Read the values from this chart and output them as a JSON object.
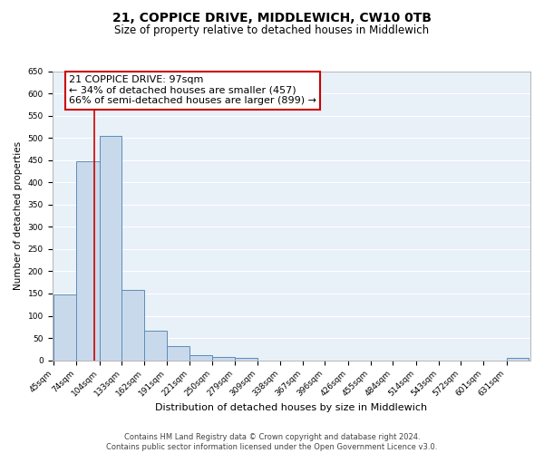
{
  "title": "21, COPPICE DRIVE, MIDDLEWICH, CW10 0TB",
  "subtitle": "Size of property relative to detached houses in Middlewich",
  "xlabel": "Distribution of detached houses by size in Middlewich",
  "ylabel": "Number of detached properties",
  "bar_labels": [
    "45sqm",
    "74sqm",
    "104sqm",
    "133sqm",
    "162sqm",
    "191sqm",
    "221sqm",
    "250sqm",
    "279sqm",
    "309sqm",
    "338sqm",
    "367sqm",
    "396sqm",
    "426sqm",
    "455sqm",
    "484sqm",
    "514sqm",
    "543sqm",
    "572sqm",
    "601sqm",
    "631sqm"
  ],
  "bin_edges": [
    45,
    74,
    104,
    133,
    162,
    191,
    221,
    250,
    279,
    309,
    338,
    367,
    396,
    426,
    455,
    484,
    514,
    543,
    572,
    601,
    631
  ],
  "bar_heights": [
    148,
    448,
    505,
    158,
    67,
    31,
    12,
    7,
    5,
    0,
    0,
    0,
    0,
    0,
    0,
    0,
    0,
    0,
    0,
    0,
    5
  ],
  "bar_color": "#c9d9ec",
  "bar_edge_color": "#5b8db8",
  "vline_x": 97,
  "vline_color": "#cc0000",
  "ylim": [
    0,
    650
  ],
  "yticks": [
    0,
    50,
    100,
    150,
    200,
    250,
    300,
    350,
    400,
    450,
    500,
    550,
    600,
    650
  ],
  "annotation_title": "21 COPPICE DRIVE: 97sqm",
  "annotation_line1": "← 34% of detached houses are smaller (457)",
  "annotation_line2": "66% of semi-detached houses are larger (899) →",
  "annotation_box_color": "#ffffff",
  "annotation_box_edge": "#cc0000",
  "footer_line1": "Contains HM Land Registry data © Crown copyright and database right 2024.",
  "footer_line2": "Contains public sector information licensed under the Open Government Licence v3.0.",
  "background_color": "#e8f0f8",
  "grid_color": "#ffffff",
  "title_fontsize": 10,
  "subtitle_fontsize": 8.5,
  "xlabel_fontsize": 8,
  "ylabel_fontsize": 7.5,
  "tick_fontsize": 6.5,
  "annotation_fontsize": 8,
  "footer_fontsize": 6
}
